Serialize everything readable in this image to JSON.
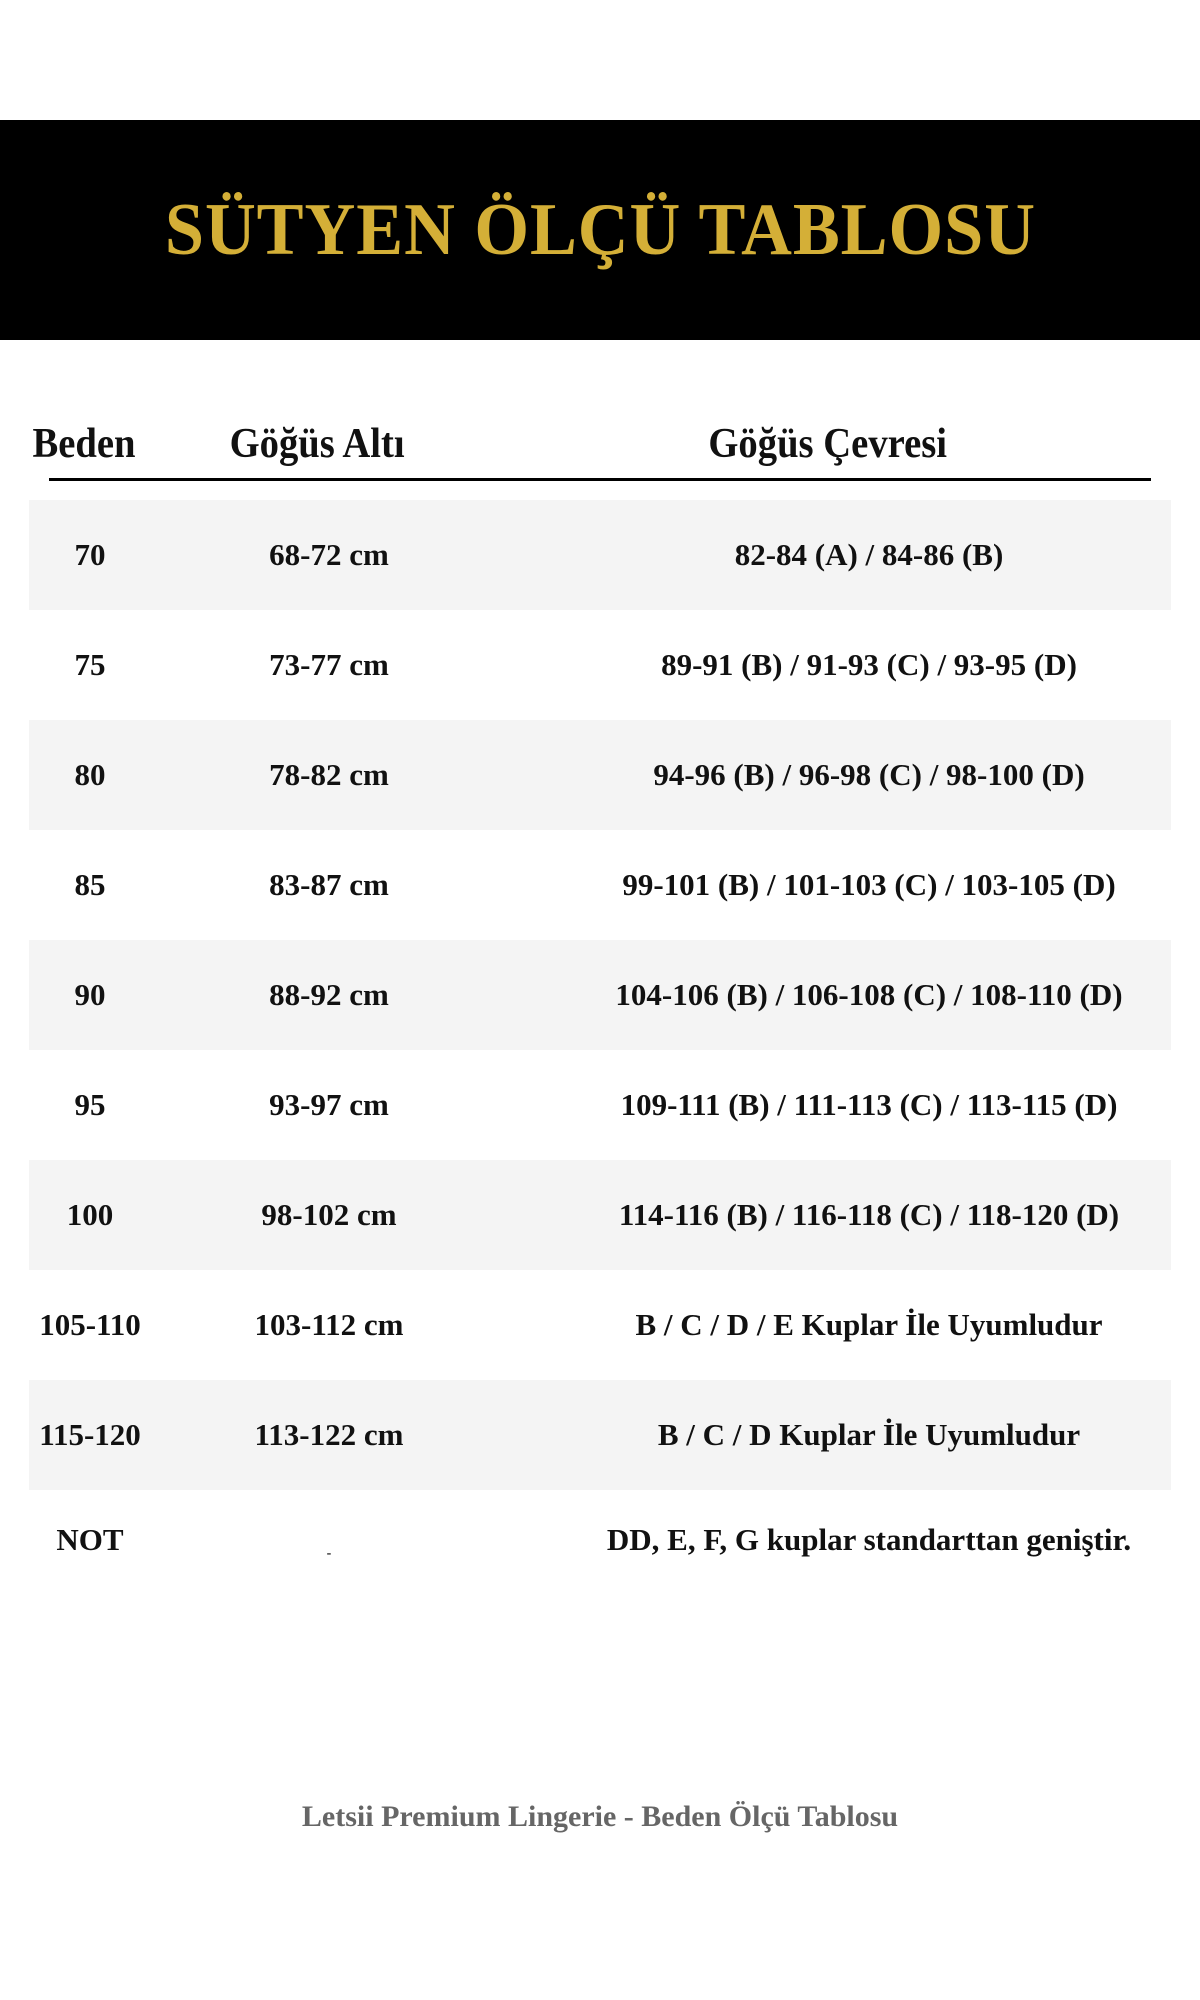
{
  "title": "SÜTYEN ÖLÇÜ TABLOSU",
  "colors": {
    "title_gold": "#D4AF37",
    "banner_bg": "#000000",
    "shaded_row": "#F4F4F4",
    "footer_text": "#666666"
  },
  "headers": {
    "size": "Beden",
    "underbust": "Göğüs Altı",
    "bust": "Göğüs Çevresi"
  },
  "rows": [
    {
      "size": "70",
      "underbust": "68-72 cm",
      "bust": "82-84 (A)  /  84-86 (B)"
    },
    {
      "size": "75",
      "underbust": "73-77 cm",
      "bust": "89-91 (B)  /  91-93 (C)  /  93-95 (D)"
    },
    {
      "size": "80",
      "underbust": "78-82 cm",
      "bust": "94-96 (B)  /  96-98 (C)  /  98-100 (D)"
    },
    {
      "size": "85",
      "underbust": "83-87 cm",
      "bust": "99-101 (B) / 101-103 (C) / 103-105 (D)"
    },
    {
      "size": "90",
      "underbust": "88-92 cm",
      "bust": "104-106 (B) / 106-108 (C) / 108-110 (D)"
    },
    {
      "size": "95",
      "underbust": "93-97 cm",
      "bust": "109-111 (B) / 111-113 (C) / 113-115 (D)"
    },
    {
      "size": "100",
      "underbust": "98-102 cm",
      "bust": "114-116 (B) / 116-118 (C) / 118-120 (D)"
    },
    {
      "size": "105-110",
      "underbust": "103-112 cm",
      "bust": "B / C / D / E  Kuplar İle Uyumludur"
    },
    {
      "size": "115-120",
      "underbust": "113-122 cm",
      "bust": "B / C / D  Kuplar İle Uyumludur"
    },
    {
      "size": "NOT",
      "underbust": "-",
      "bust": "DD, E, F, G kuplar standarttan geniştir."
    }
  ],
  "footer": "Letsii Premium Lingerie - Beden Ölçü Tablosu"
}
